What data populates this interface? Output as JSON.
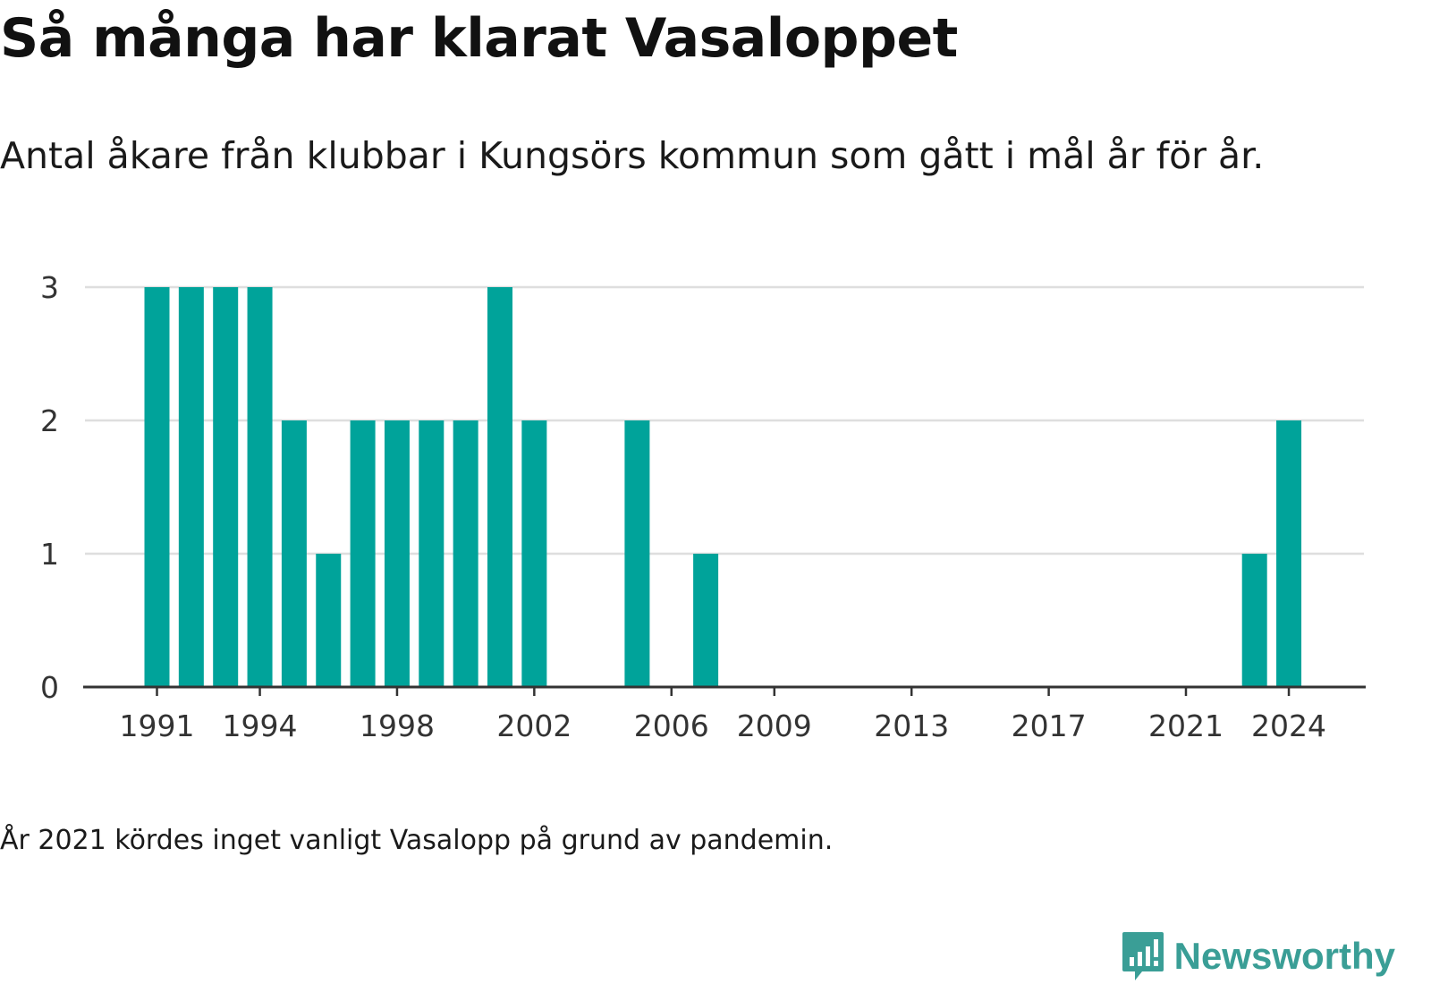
{
  "title": "Så många har klarat Vasaloppet",
  "subtitle": "Antal åkare från klubbar i Kungsörs kommun som gått i mål år för år.",
  "note": "År 2021 kördes inget vanligt Vasalopp på grund av pandemin.",
  "brand": {
    "name": "Newsworthy",
    "icon": "newsworthy-logo-icon",
    "color": "#3a9e96"
  },
  "chart_data": {
    "type": "bar",
    "bar_color": "#00a39a",
    "categories": [
      1991,
      1992,
      1993,
      1994,
      1995,
      1996,
      1997,
      1998,
      1999,
      2000,
      2001,
      2002,
      2003,
      2004,
      2005,
      2006,
      2007,
      2008,
      2009,
      2010,
      2011,
      2012,
      2013,
      2014,
      2015,
      2016,
      2017,
      2018,
      2019,
      2020,
      2021,
      2022,
      2023,
      2024
    ],
    "values": [
      3,
      3,
      3,
      3,
      2,
      1,
      2,
      2,
      2,
      2,
      3,
      2,
      0,
      0,
      2,
      0,
      1,
      0,
      0,
      0,
      0,
      0,
      0,
      0,
      0,
      0,
      0,
      0,
      0,
      0,
      0,
      0,
      1,
      2
    ],
    "x_tick_labels": [
      "1991",
      "1994",
      "1998",
      "2002",
      "2006",
      "2009",
      "2013",
      "2017",
      "2021",
      "2024"
    ],
    "y_ticks": [
      0,
      1,
      2,
      3
    ],
    "ylim": [
      0,
      3
    ],
    "grid": true,
    "xlabel": "",
    "ylabel": ""
  }
}
